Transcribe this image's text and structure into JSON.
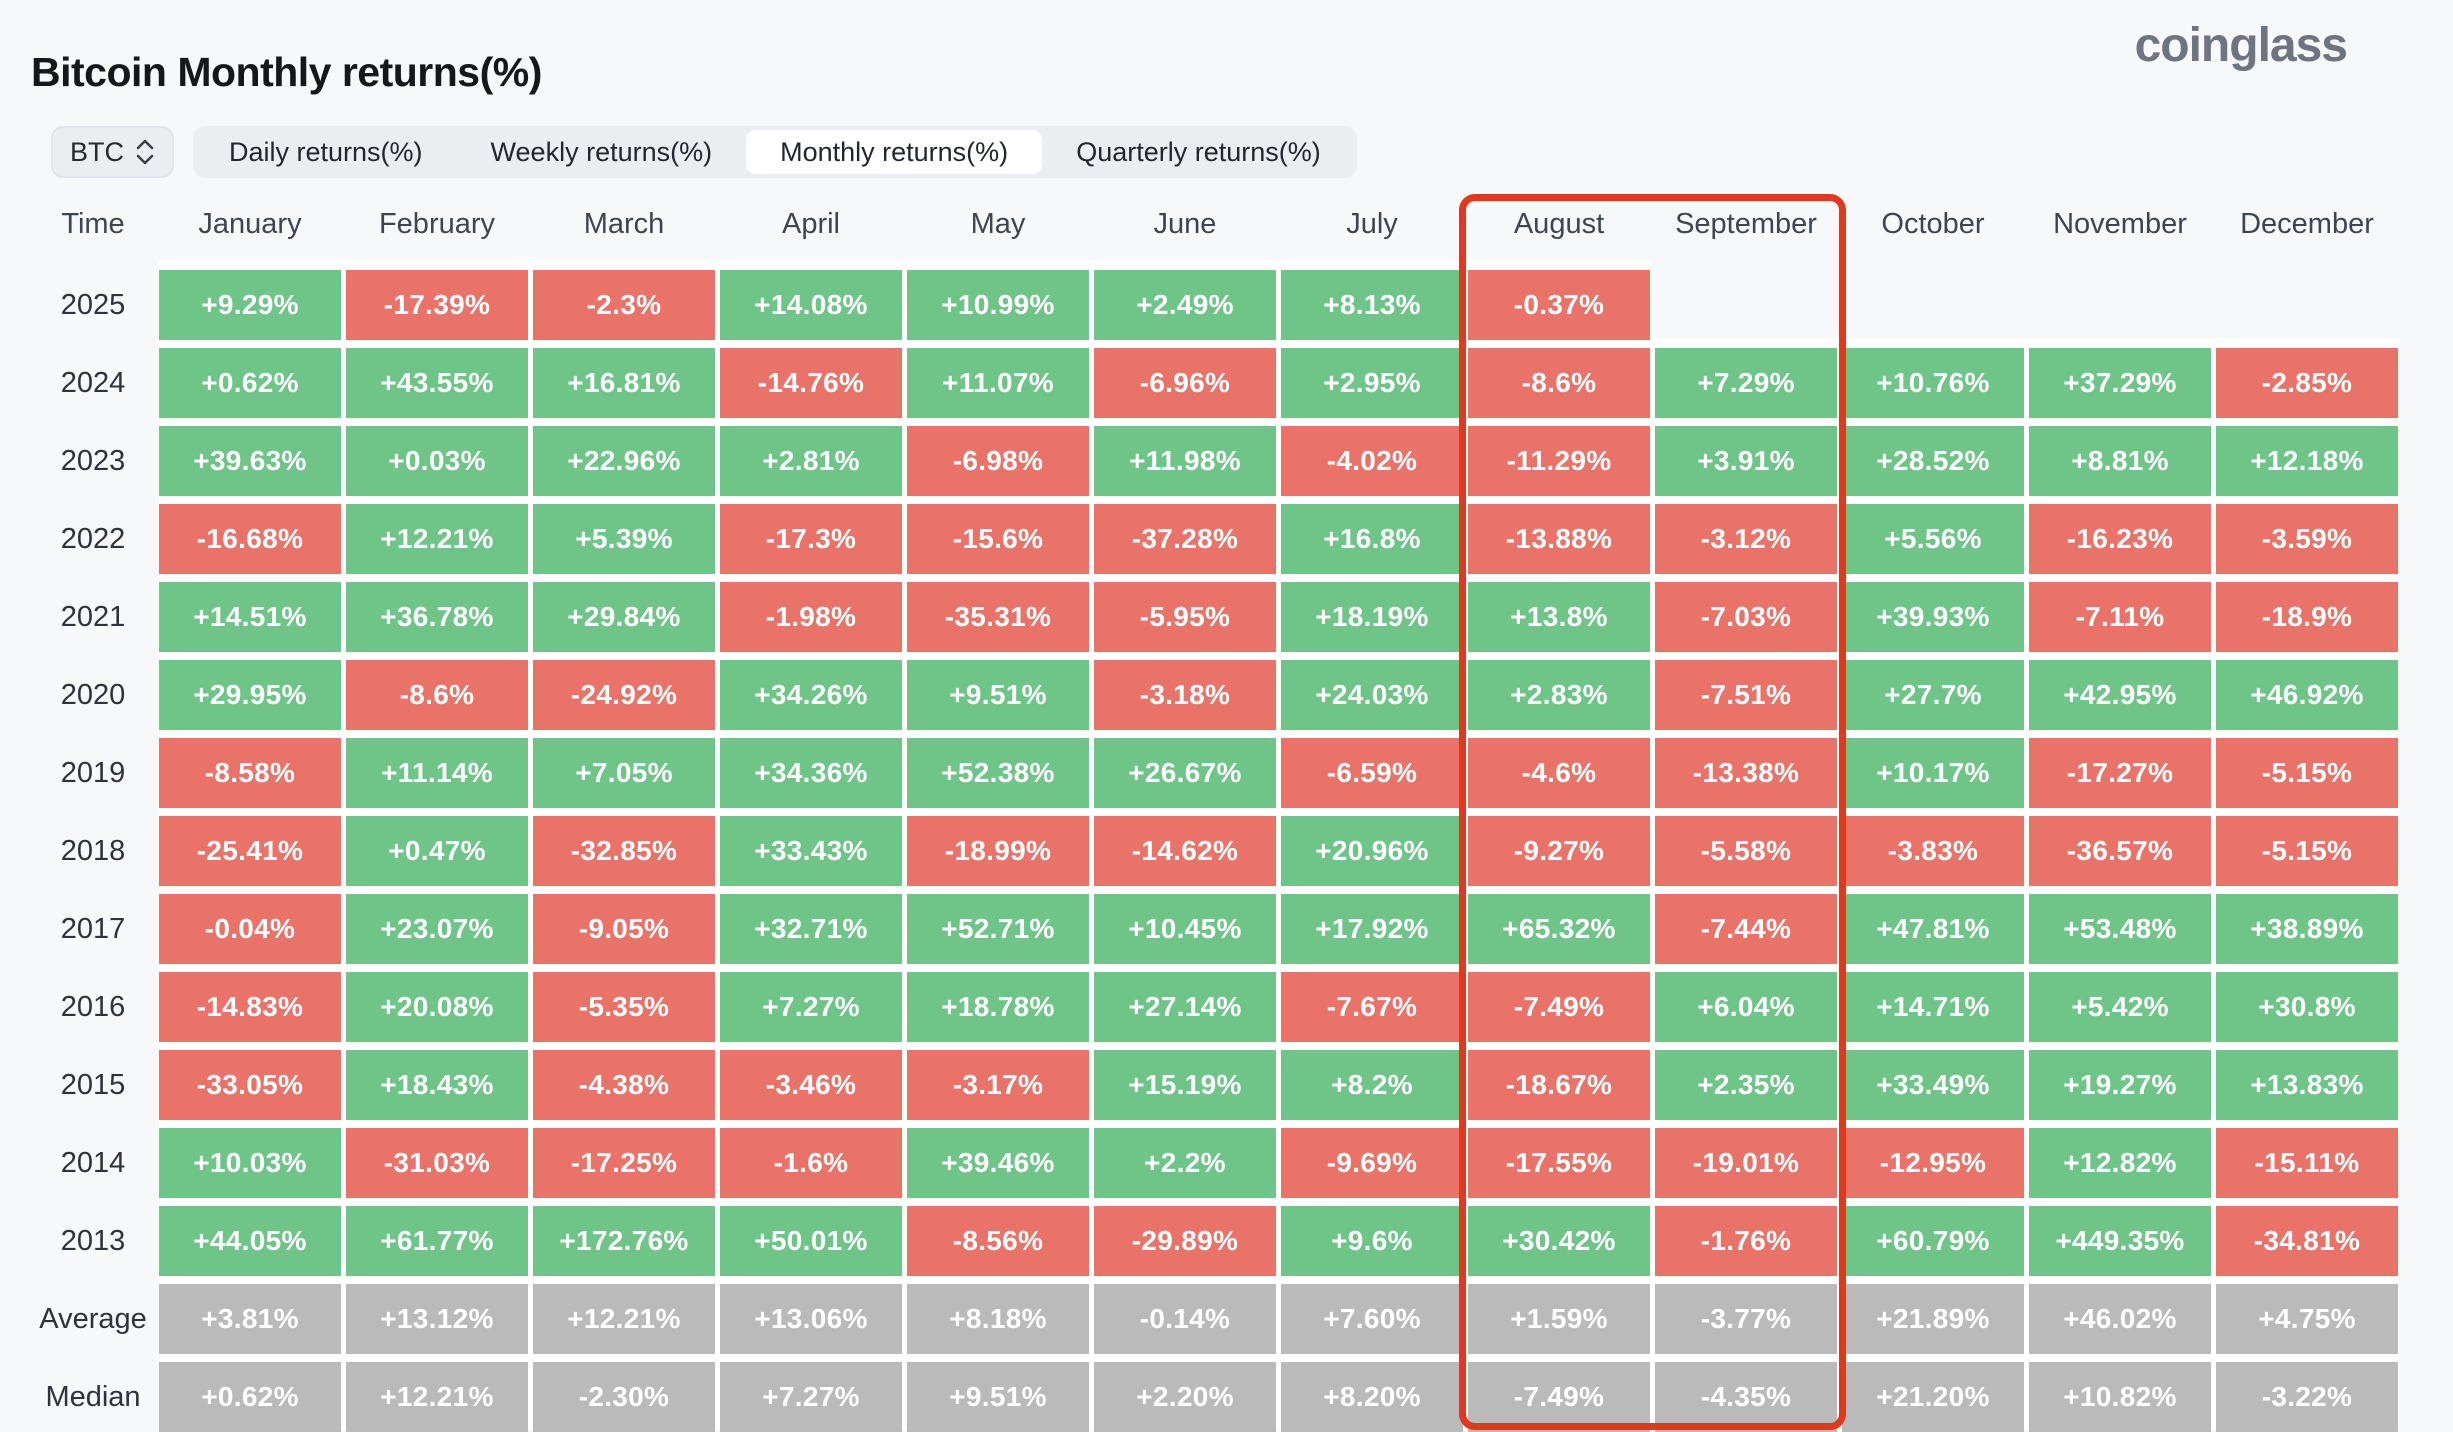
{
  "header": {
    "title": "Bitcoin Monthly returns(%)",
    "logo_text": "coinglass"
  },
  "controls": {
    "symbol_selector": {
      "value": "BTC"
    },
    "tabs": [
      {
        "label": "Daily returns(%)",
        "active": false
      },
      {
        "label": "Weekly returns(%)",
        "active": false
      },
      {
        "label": "Monthly returns(%)",
        "active": true
      },
      {
        "label": "Quarterly returns(%)",
        "active": false
      }
    ]
  },
  "colors": {
    "positive": "#6EC587",
    "negative": "#E97368",
    "summary": "#BABABA",
    "highlight": "#E0391D"
  },
  "highlight_box": {
    "from_column": "August",
    "to_column": "September"
  },
  "chart_data": {
    "type": "heatmap",
    "title": "Bitcoin Monthly returns(%)",
    "columns": [
      "Time",
      "January",
      "February",
      "March",
      "April",
      "May",
      "June",
      "July",
      "August",
      "September",
      "October",
      "November",
      "December"
    ],
    "rows": [
      {
        "label": "2025",
        "values": [
          "+9.29%",
          "-17.39%",
          "-2.3%",
          "+14.08%",
          "+10.99%",
          "+2.49%",
          "+8.13%",
          "-0.37%",
          null,
          null,
          null,
          null
        ]
      },
      {
        "label": "2024",
        "values": [
          "+0.62%",
          "+43.55%",
          "+16.81%",
          "-14.76%",
          "+11.07%",
          "-6.96%",
          "+2.95%",
          "-8.6%",
          "+7.29%",
          "+10.76%",
          "+37.29%",
          "-2.85%"
        ]
      },
      {
        "label": "2023",
        "values": [
          "+39.63%",
          "+0.03%",
          "+22.96%",
          "+2.81%",
          "-6.98%",
          "+11.98%",
          "-4.02%",
          "-11.29%",
          "+3.91%",
          "+28.52%",
          "+8.81%",
          "+12.18%"
        ]
      },
      {
        "label": "2022",
        "values": [
          "-16.68%",
          "+12.21%",
          "+5.39%",
          "-17.3%",
          "-15.6%",
          "-37.28%",
          "+16.8%",
          "-13.88%",
          "-3.12%",
          "+5.56%",
          "-16.23%",
          "-3.59%"
        ]
      },
      {
        "label": "2021",
        "values": [
          "+14.51%",
          "+36.78%",
          "+29.84%",
          "-1.98%",
          "-35.31%",
          "-5.95%",
          "+18.19%",
          "+13.8%",
          "-7.03%",
          "+39.93%",
          "-7.11%",
          "-18.9%"
        ]
      },
      {
        "label": "2020",
        "values": [
          "+29.95%",
          "-8.6%",
          "-24.92%",
          "+34.26%",
          "+9.51%",
          "-3.18%",
          "+24.03%",
          "+2.83%",
          "-7.51%",
          "+27.7%",
          "+42.95%",
          "+46.92%"
        ]
      },
      {
        "label": "2019",
        "values": [
          "-8.58%",
          "+11.14%",
          "+7.05%",
          "+34.36%",
          "+52.38%",
          "+26.67%",
          "-6.59%",
          "-4.6%",
          "-13.38%",
          "+10.17%",
          "-17.27%",
          "-5.15%"
        ]
      },
      {
        "label": "2018",
        "values": [
          "-25.41%",
          "+0.47%",
          "-32.85%",
          "+33.43%",
          "-18.99%",
          "-14.62%",
          "+20.96%",
          "-9.27%",
          "-5.58%",
          "-3.83%",
          "-36.57%",
          "-5.15%"
        ]
      },
      {
        "label": "2017",
        "values": [
          "-0.04%",
          "+23.07%",
          "-9.05%",
          "+32.71%",
          "+52.71%",
          "+10.45%",
          "+17.92%",
          "+65.32%",
          "-7.44%",
          "+47.81%",
          "+53.48%",
          "+38.89%"
        ]
      },
      {
        "label": "2016",
        "values": [
          "-14.83%",
          "+20.08%",
          "-5.35%",
          "+7.27%",
          "+18.78%",
          "+27.14%",
          "-7.67%",
          "-7.49%",
          "+6.04%",
          "+14.71%",
          "+5.42%",
          "+30.8%"
        ]
      },
      {
        "label": "2015",
        "values": [
          "-33.05%",
          "+18.43%",
          "-4.38%",
          "-3.46%",
          "-3.17%",
          "+15.19%",
          "+8.2%",
          "-18.67%",
          "+2.35%",
          "+33.49%",
          "+19.27%",
          "+13.83%"
        ]
      },
      {
        "label": "2014",
        "values": [
          "+10.03%",
          "-31.03%",
          "-17.25%",
          "-1.6%",
          "+39.46%",
          "+2.2%",
          "-9.69%",
          "-17.55%",
          "-19.01%",
          "-12.95%",
          "+12.82%",
          "-15.11%"
        ]
      },
      {
        "label": "2013",
        "values": [
          "+44.05%",
          "+61.77%",
          "+172.76%",
          "+50.01%",
          "-8.56%",
          "-29.89%",
          "+9.6%",
          "+30.42%",
          "-1.76%",
          "+60.79%",
          "+449.35%",
          "-34.81%"
        ]
      },
      {
        "label": "Average",
        "summary": true,
        "values": [
          "+3.81%",
          "+13.12%",
          "+12.21%",
          "+13.06%",
          "+8.18%",
          "-0.14%",
          "+7.60%",
          "+1.59%",
          "-3.77%",
          "+21.89%",
          "+46.02%",
          "+4.75%"
        ]
      },
      {
        "label": "Median",
        "summary": true,
        "values": [
          "+0.62%",
          "+12.21%",
          "-2.30%",
          "+7.27%",
          "+9.51%",
          "+2.20%",
          "+8.20%",
          "-7.49%",
          "-4.35%",
          "+21.20%",
          "+10.82%",
          "-3.22%"
        ]
      }
    ]
  }
}
